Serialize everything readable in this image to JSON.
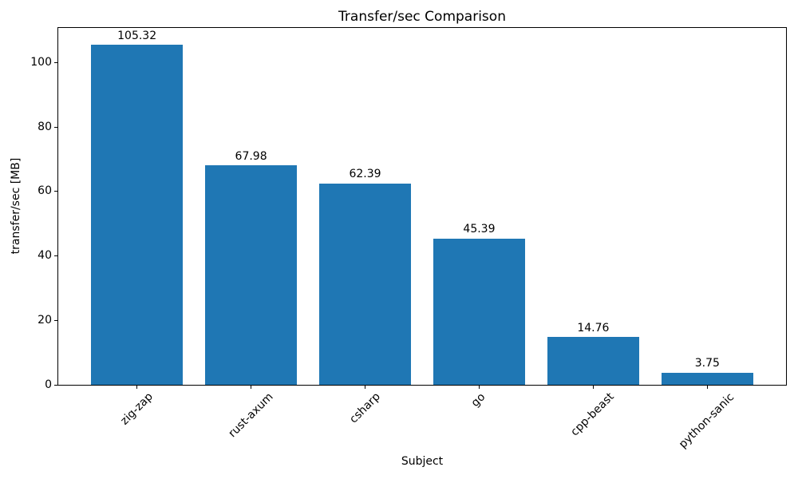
{
  "chart_data": {
    "type": "bar",
    "title": "Transfer/sec Comparison",
    "xlabel": "Subject",
    "ylabel": "transfer/sec [MB]",
    "categories": [
      "zig-zap",
      "rust-axum",
      "csharp",
      "go",
      "cpp-beast",
      "python-sanic"
    ],
    "values": [
      105.32,
      67.98,
      62.39,
      45.39,
      14.76,
      3.75
    ],
    "value_labels": [
      "105.32",
      "67.98",
      "62.39",
      "45.39",
      "14.76",
      "3.75"
    ],
    "yticks": [
      0,
      20,
      40,
      60,
      80,
      100
    ],
    "ylim": [
      0,
      110.59
    ],
    "xlim": [
      -0.69,
      5.69
    ],
    "bar_width": 0.8,
    "bar_color": "#1f77b4",
    "xtick_rotation": 45,
    "grid": false,
    "legend": "none",
    "background": "#ffffff",
    "spine_color": "#000000"
  }
}
